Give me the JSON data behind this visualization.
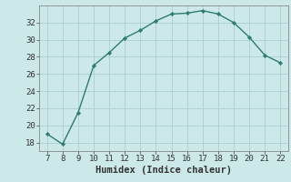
{
  "x": [
    7,
    8,
    9,
    10,
    11,
    12,
    13,
    14,
    15,
    16,
    17,
    18,
    19,
    20,
    21,
    22
  ],
  "y": [
    19.0,
    17.8,
    21.5,
    27.0,
    28.5,
    30.2,
    31.1,
    32.2,
    33.0,
    33.1,
    33.4,
    33.0,
    32.0,
    30.3,
    28.2,
    27.3
  ],
  "line_color": "#2d7d6e",
  "marker_color": "#2d7d6e",
  "bg_color": "#cce8e8",
  "grid_color": "#aacfcf",
  "xlabel": "Humidex (Indice chaleur)",
  "xlim": [
    6.5,
    22.5
  ],
  "ylim": [
    17,
    34
  ],
  "xticks": [
    7,
    8,
    9,
    10,
    11,
    12,
    13,
    14,
    15,
    16,
    17,
    18,
    19,
    20,
    21,
    22
  ],
  "yticks": [
    18,
    20,
    22,
    24,
    26,
    28,
    30,
    32
  ],
  "tick_fontsize": 6.5,
  "xlabel_fontsize": 7.5,
  "label_color": "#333333",
  "spine_color": "#888888"
}
